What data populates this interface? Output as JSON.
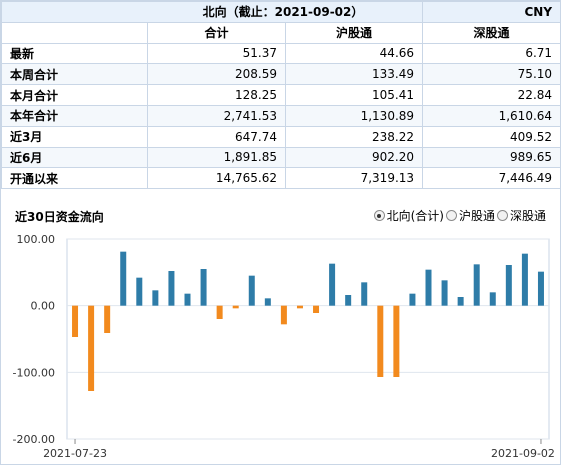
{
  "header": {
    "title": "北向（截止：2021-09-02）",
    "currency": "CNY"
  },
  "table": {
    "columns": [
      "",
      "合计",
      "沪股通",
      "深股通"
    ],
    "rows": [
      {
        "label": "最新",
        "values": [
          "51.37",
          "44.66",
          "6.71"
        ]
      },
      {
        "label": "本周合计",
        "values": [
          "208.59",
          "133.49",
          "75.10"
        ]
      },
      {
        "label": "本月合计",
        "values": [
          "128.25",
          "105.41",
          "22.84"
        ]
      },
      {
        "label": "本年合计",
        "values": [
          "2,741.53",
          "1,130.89",
          "1,610.64"
        ]
      },
      {
        "label": "近3月",
        "values": [
          "647.74",
          "238.22",
          "409.52"
        ]
      },
      {
        "label": "近6月",
        "values": [
          "1,891.85",
          "902.20",
          "989.65"
        ]
      },
      {
        "label": "开通以来",
        "values": [
          "14,765.62",
          "7,319.13",
          "7,446.49"
        ]
      }
    ]
  },
  "chart_header": {
    "title": "近30日资金流向",
    "options": [
      {
        "label": "北向(合计)",
        "selected": true
      },
      {
        "label": "沪股通",
        "selected": false
      },
      {
        "label": "深股通",
        "selected": false
      }
    ]
  },
  "chart_data": {
    "type": "bar",
    "title": "近30日资金流向",
    "x_start_label": "2021-07-23",
    "x_end_label": "2021-09-02",
    "ylim": [
      -200,
      100
    ],
    "yticks": [
      100,
      0,
      -100,
      -200
    ],
    "ytick_labels": [
      "100.00",
      "0.00",
      "-100.00",
      "-200.00"
    ],
    "grid": true,
    "positive_color": "#2e7ca8",
    "negative_color": "#f28a1e",
    "values": [
      -47,
      -128,
      -41,
      81,
      42,
      23,
      52,
      18,
      55,
      -20,
      -4,
      45,
      11,
      -28,
      -4,
      -11,
      63,
      16,
      35,
      -107,
      -107,
      18,
      54,
      38,
      13,
      62,
      20,
      61,
      78,
      51
    ]
  }
}
